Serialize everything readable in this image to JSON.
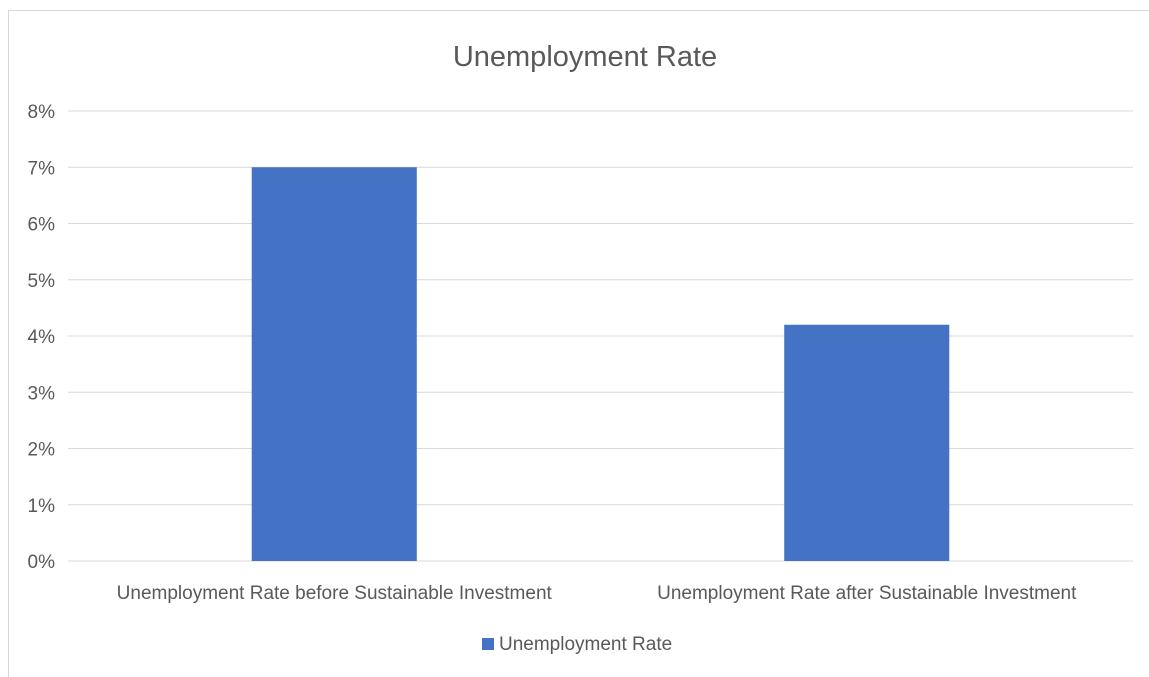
{
  "chart_data": {
    "type": "bar",
    "title": "Unemployment Rate",
    "xlabel": "",
    "ylabel": "",
    "categories": [
      "Unemployment Rate before Sustainable Investment",
      "Unemployment Rate after Sustainable Investment"
    ],
    "series": [
      {
        "name": "Unemployment Rate",
        "values": [
          0.07,
          0.042
        ],
        "color": "#4472c4"
      }
    ],
    "ylim": [
      0,
      0.08
    ],
    "yticks": [
      0,
      0.01,
      0.02,
      0.03,
      0.04,
      0.05,
      0.06,
      0.07,
      0.08
    ],
    "ytick_labels": [
      "0%",
      "1%",
      "2%",
      "3%",
      "4%",
      "5%",
      "6%",
      "7%",
      "8%"
    ],
    "grid": true,
    "legend_position": "bottom",
    "colors": {
      "bar": "#4472c4",
      "grid": "#d9d9d9",
      "text": "#595959"
    }
  }
}
